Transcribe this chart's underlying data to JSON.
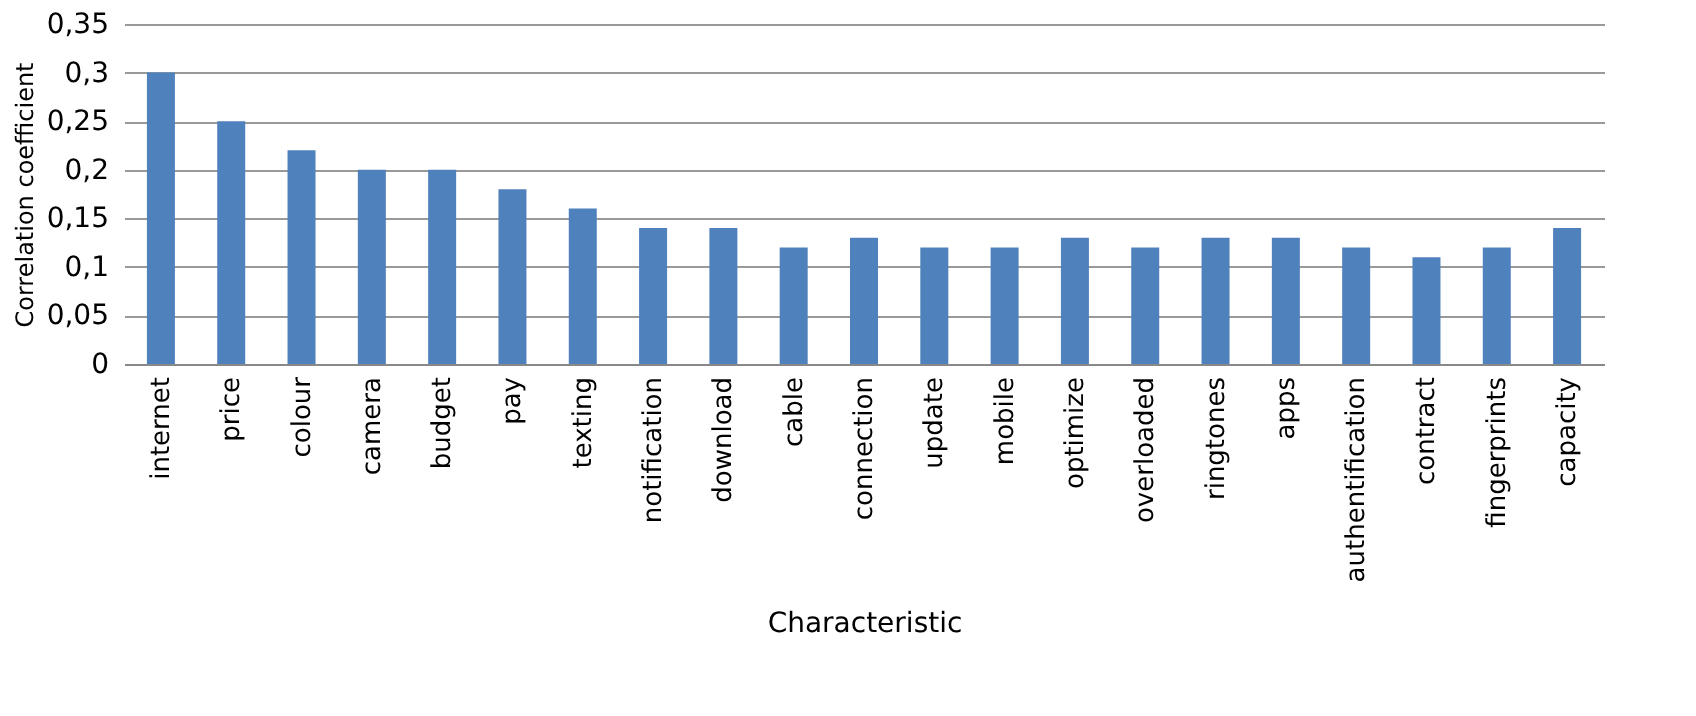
{
  "chart_data": {
    "type": "bar",
    "xlabel": "Characteristic",
    "ylabel": "Correlation coefficient",
    "categories": [
      "internet",
      "price",
      "colour",
      "camera",
      "budget",
      "pay",
      "texting",
      "notification",
      "download",
      "cable",
      "connection",
      "update",
      "mobile",
      "optimize",
      "overloaded",
      "ringtones",
      "apps",
      "authentification",
      "contract",
      "fingerprints",
      "capacity"
    ],
    "values": [
      0.3,
      0.25,
      0.22,
      0.2,
      0.2,
      0.18,
      0.16,
      0.14,
      0.14,
      0.12,
      0.13,
      0.12,
      0.12,
      0.13,
      0.12,
      0.13,
      0.13,
      0.12,
      0.11,
      0.12,
      0.14
    ],
    "color": "#4f81bd",
    "ylim": [
      0,
      0.35
    ],
    "yticks": [
      0,
      {
        "value": 0.05,
        "label": "0,05"
      },
      {
        "value": 0.1,
        "label": "0,1"
      },
      {
        "value": 0.15,
        "label": "0,15"
      },
      {
        "value": 0.2,
        "label": "0,2"
      },
      {
        "value": 0.25,
        "label": "0,25"
      },
      {
        "value": 0.3,
        "label": "0,3"
      },
      {
        "value": 0.35,
        "label": "0,35"
      }
    ],
    "grid": "y"
  }
}
